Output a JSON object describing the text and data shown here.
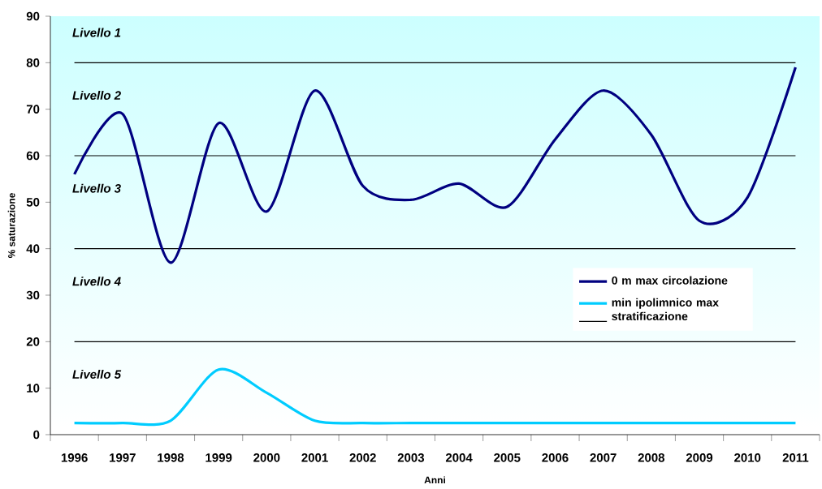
{
  "chart_data": {
    "type": "line",
    "xlabel": "Anni",
    "ylabel": "% saturazione",
    "categories": [
      "1996",
      "1997",
      "1998",
      "1999",
      "2000",
      "2001",
      "2002",
      "2003",
      "2004",
      "2005",
      "2006",
      "2007",
      "2008",
      "2009",
      "2010",
      "2011"
    ],
    "series": [
      {
        "name": "0 m max circolazione",
        "color": "#000080",
        "values": [
          56,
          69,
          37,
          67,
          48,
          74,
          53.5,
          50.5,
          54,
          49,
          63.5,
          74,
          64.5,
          46,
          51,
          79
        ]
      },
      {
        "name": "min ipolimnico max stratificazione",
        "color": "#00ccff",
        "values": [
          2.5,
          2.5,
          3,
          14,
          9,
          3,
          2.5,
          2.5,
          2.5,
          2.5,
          2.5,
          2.5,
          2.5,
          2.5,
          2.5,
          2.5
        ]
      }
    ],
    "ylim": [
      0,
      90
    ],
    "yticks": [
      0,
      10,
      20,
      30,
      40,
      50,
      60,
      70,
      80,
      90
    ],
    "ref_lines": [
      {
        "axis": "y",
        "value": 80,
        "color": "#000000"
      },
      {
        "axis": "y",
        "value": 60,
        "color": "#000000"
      },
      {
        "axis": "y",
        "value": 40,
        "color": "#000000"
      },
      {
        "axis": "y",
        "value": 20,
        "color": "#000000"
      }
    ],
    "annotations": [
      "Livello 1",
      "Livello 2",
      "Livello 3",
      "Livello 4",
      "Livello 5"
    ],
    "legend": "right",
    "marker": "none",
    "line_style": "solid"
  }
}
